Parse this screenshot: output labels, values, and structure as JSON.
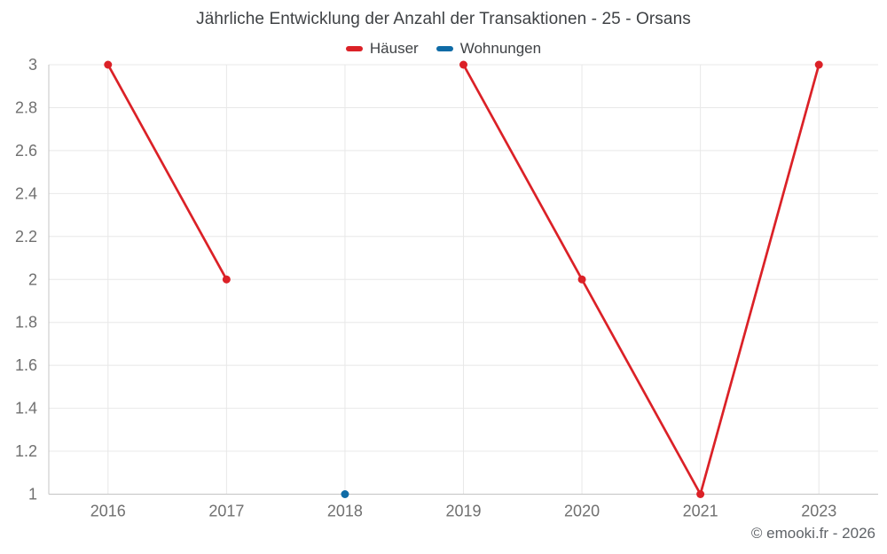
{
  "title": "Jährliche Entwicklung der Anzahl der Transaktionen - 25 - Orsans",
  "copyright": "© emooki.fr - 2026",
  "legend": {
    "items": [
      {
        "label": "Häuser",
        "color": "#db2127"
      },
      {
        "label": "Wohnungen",
        "color": "#0f6ba6"
      }
    ]
  },
  "chart_data": {
    "type": "line",
    "title": "Jährliche Entwicklung der Anzahl der Transaktionen - 25 - Orsans",
    "categories": [
      "2016",
      "2017",
      "2018",
      "2019",
      "2020",
      "2021",
      "2023"
    ],
    "series": [
      {
        "name": "Häuser",
        "color": "#db2127",
        "values": [
          3,
          2,
          null,
          3,
          2,
          1,
          3
        ]
      },
      {
        "name": "Wohnungen",
        "color": "#0f6ba6",
        "values": [
          null,
          null,
          1,
          null,
          null,
          null,
          null
        ]
      }
    ],
    "xlabel": "",
    "ylabel": "",
    "ylim": [
      1,
      3
    ],
    "ytick_step": 0.2,
    "ytick_labels": [
      "1",
      "1.2",
      "1.4",
      "1.6",
      "1.8",
      "2",
      "2.2",
      "2.4",
      "2.6",
      "2.8",
      "3"
    ],
    "grid": true,
    "legend_position": "top",
    "marker_radius": 4.5,
    "line_width": 2.7
  },
  "colors": {
    "background": "#ffffff",
    "gridline": "#e8e8e8",
    "axis_line": "#c4c4c4",
    "tick_label": "#707070",
    "title_text": "#3f4245",
    "copyright_text": "#5f6368"
  }
}
